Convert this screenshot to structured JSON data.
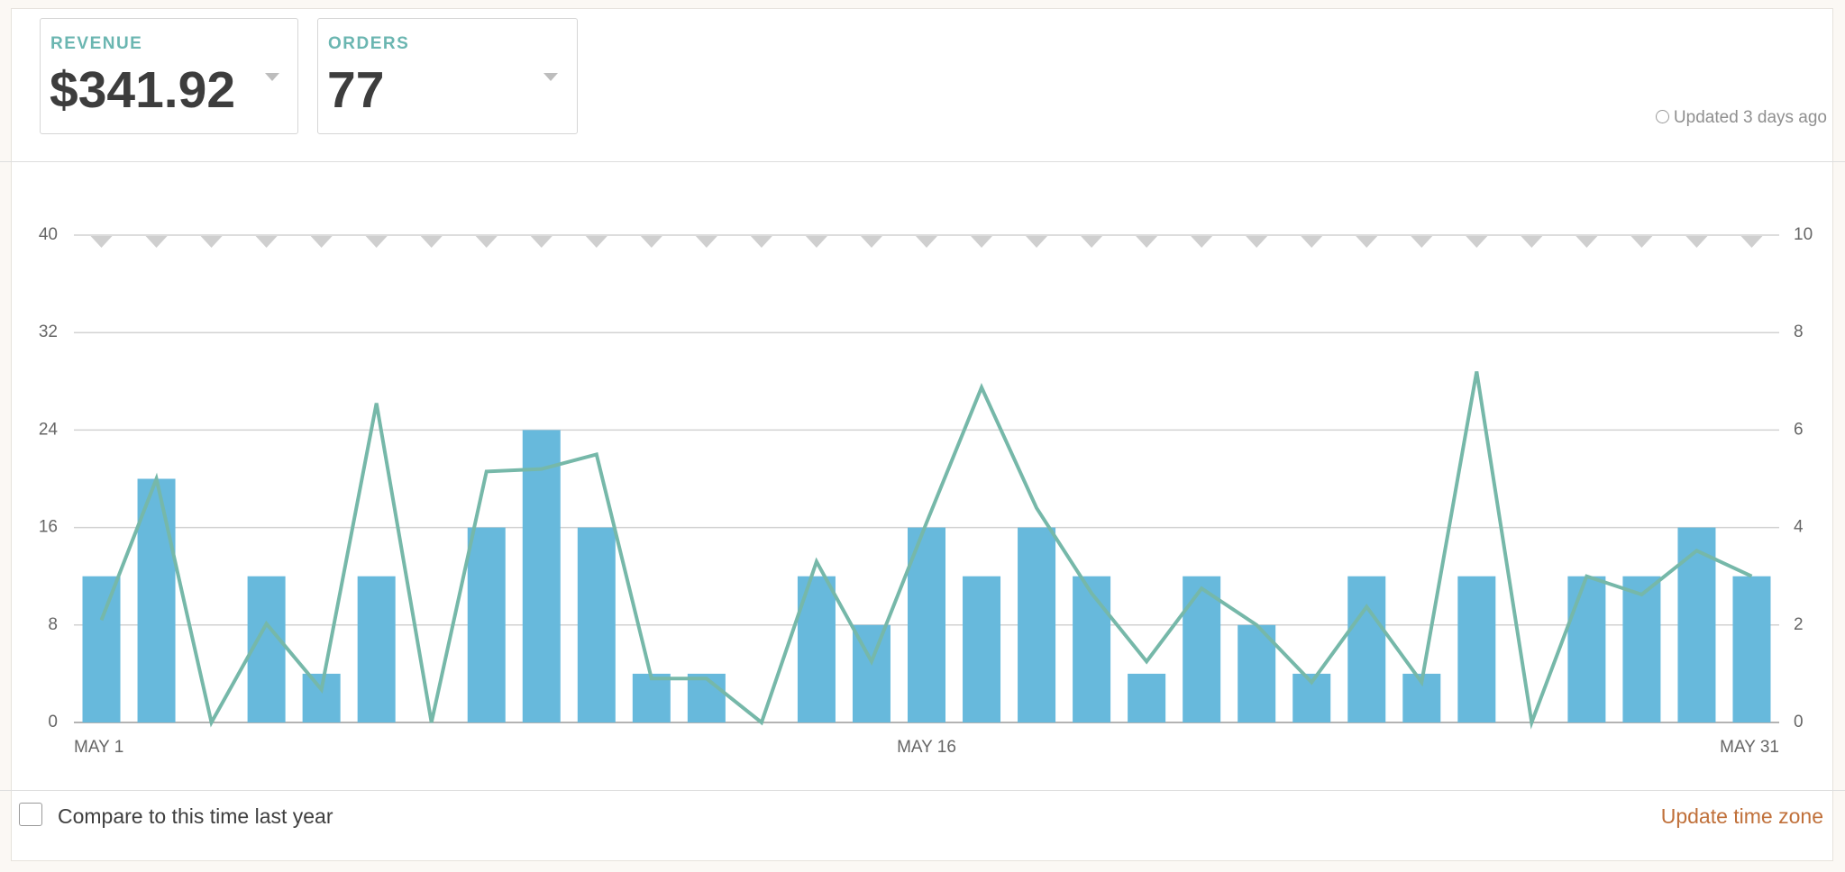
{
  "header": {
    "cards": [
      {
        "label": "REVENUE",
        "value": "$341.92"
      },
      {
        "label": "ORDERS",
        "value": "77"
      }
    ],
    "updated": "Updated 3 days ago"
  },
  "chart_data": {
    "type": "combo",
    "categories": [
      "MAY 1",
      null,
      null,
      null,
      null,
      null,
      null,
      null,
      null,
      null,
      null,
      null,
      null,
      null,
      null,
      "MAY 16",
      null,
      null,
      null,
      null,
      null,
      null,
      null,
      null,
      null,
      null,
      null,
      null,
      null,
      null,
      "MAY 31"
    ],
    "series": [
      {
        "type": "bar",
        "axis": "y2",
        "color": "#67b9dc",
        "values": [
          3,
          5,
          0,
          3,
          1,
          3,
          0,
          4,
          6,
          4,
          1,
          1,
          0,
          3,
          2,
          4,
          3,
          4,
          3,
          1,
          3,
          2,
          1,
          3,
          1,
          3,
          0,
          3,
          3,
          4,
          3
        ]
      },
      {
        "type": "line",
        "axis": "y",
        "color": "#76b8a9",
        "values": [
          8.4,
          20,
          0,
          8.1,
          2.7,
          26.2,
          0,
          20.6,
          20.8,
          22,
          3.6,
          3.6,
          0,
          13.2,
          5,
          16.4,
          27.5,
          17.6,
          10.6,
          5,
          11,
          8,
          3.3,
          9.5,
          3.3,
          28.8,
          0,
          12,
          10.5,
          14.1,
          12
        ]
      }
    ],
    "ylim": [
      0,
      40
    ],
    "yticks": [
      0,
      8,
      16,
      24,
      32,
      40
    ],
    "y2lim": [
      0,
      10
    ],
    "y2ticks": [
      0,
      2,
      4,
      6,
      8,
      10
    ],
    "grid": true
  },
  "footer": {
    "compare": "Compare to this time last year",
    "timezone": "Update time zone"
  }
}
